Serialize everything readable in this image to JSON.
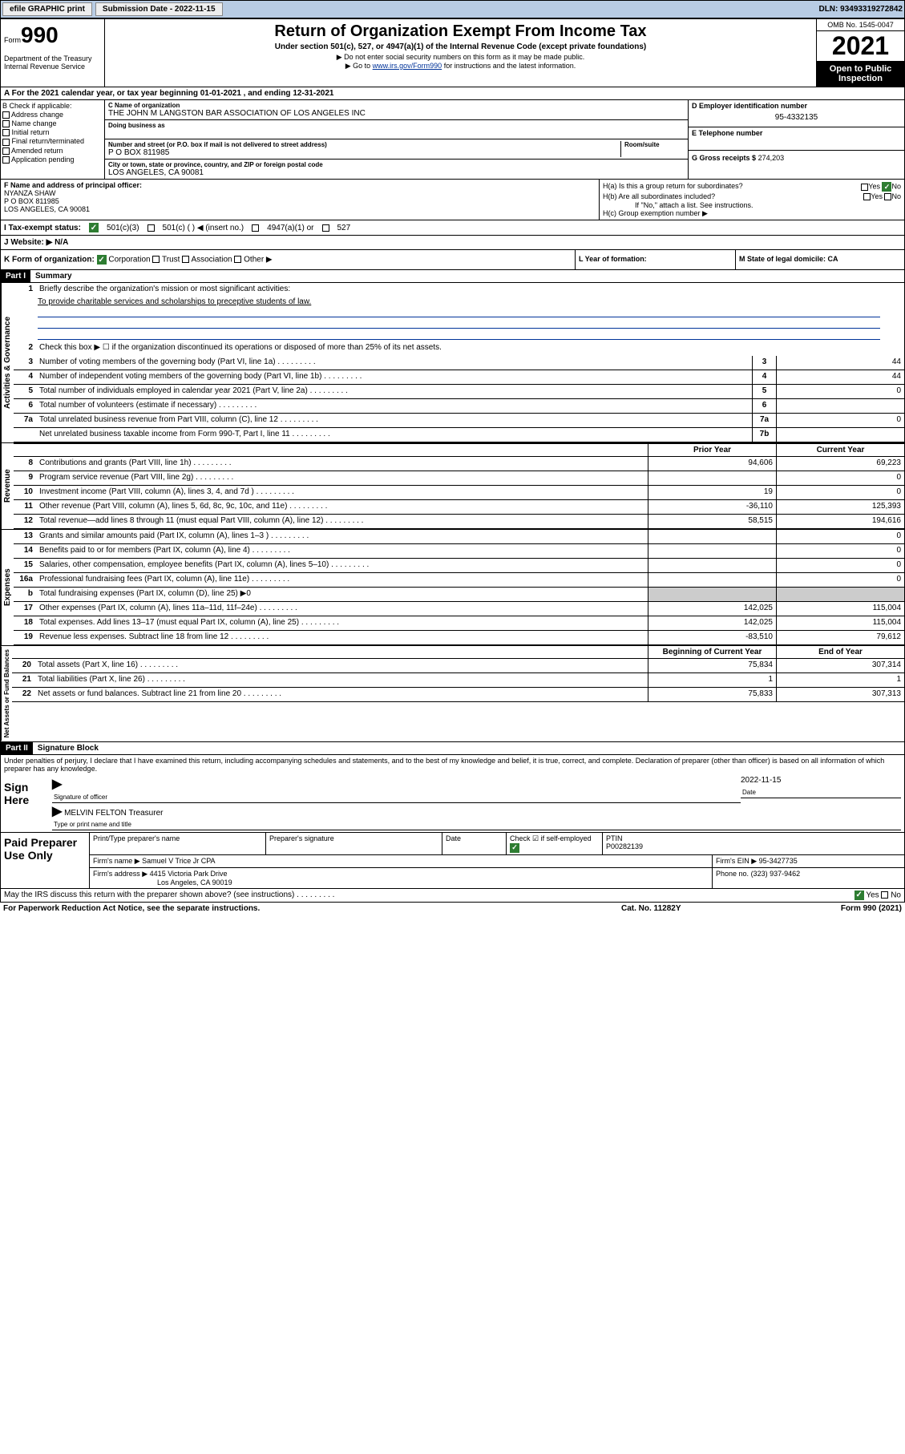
{
  "topbar": {
    "efile": "efile GRAPHIC print",
    "sub_label": "Submission Date - 2022-11-15",
    "dln": "DLN: 93493319272842"
  },
  "header": {
    "form_label": "Form",
    "form_num": "990",
    "dept": "Department of the Treasury\nInternal Revenue Service",
    "title": "Return of Organization Exempt From Income Tax",
    "subtitle": "Under section 501(c), 527, or 4947(a)(1) of the Internal Revenue Code (except private foundations)",
    "instr1": "▶ Do not enter social security numbers on this form as it may be made public.",
    "instr2_pre": "▶ Go to ",
    "instr2_link": "www.irs.gov/Form990",
    "instr2_post": " for instructions and the latest information.",
    "omb": "OMB No. 1545-0047",
    "year": "2021",
    "open": "Open to Public Inspection"
  },
  "row_a": "A For the 2021 calendar year, or tax year beginning 01-01-2021   , and ending 12-31-2021",
  "col_b": {
    "header": "B Check if applicable:",
    "items": [
      "Address change",
      "Name change",
      "Initial return",
      "Final return/terminated",
      "Amended return",
      "Application pending"
    ]
  },
  "col_c": {
    "name_label": "C Name of organization",
    "name": "THE JOHN M LANGSTON BAR ASSOCIATION OF LOS ANGELES INC",
    "dba_label": "Doing business as",
    "addr_label": "Number and street (or P.O. box if mail is not delivered to street address)",
    "room_label": "Room/suite",
    "addr": "P O BOX 811985",
    "city_label": "City or town, state or province, country, and ZIP or foreign postal code",
    "city": "LOS ANGELES, CA  90081"
  },
  "col_d": {
    "ein_label": "D Employer identification number",
    "ein": "95-4332135",
    "tel_label": "E Telephone number",
    "gross_label": "G Gross receipts $",
    "gross": "274,203"
  },
  "col_f": {
    "label": "F Name and address of principal officer:",
    "name": "NYANZA SHAW",
    "addr1": "P O BOX 811985",
    "addr2": "LOS ANGELES, CA  90081"
  },
  "col_h": {
    "ha": "H(a)  Is this a group return for subordinates?",
    "hb": "H(b)  Are all subordinates included?",
    "hb_note": "If \"No,\" attach a list. See instructions.",
    "hc": "H(c)  Group exemption number ▶",
    "yes": "Yes",
    "no": "No"
  },
  "row_i": {
    "label": "I   Tax-exempt status:",
    "opt1": "501(c)(3)",
    "opt2": "501(c) (   ) ◀ (insert no.)",
    "opt3": "4947(a)(1) or",
    "opt4": "527"
  },
  "row_j": "J   Website: ▶ N/A",
  "row_k": {
    "label": "K Form of organization:",
    "corp": "Corporation",
    "trust": "Trust",
    "assoc": "Association",
    "other": "Other ▶",
    "l": "L Year of formation:",
    "m": "M State of legal domicile: CA"
  },
  "part1": {
    "hdr": "Part I",
    "title": "Summary",
    "activities": "Activities & Governance",
    "revenue": "Revenue",
    "expenses": "Expenses",
    "netassets": "Net Assets or Fund Balances",
    "line1": "Briefly describe the organization's mission or most significant activities:",
    "mission": "To provide charitable services and scholarships to preceptive students of law.",
    "line2": "Check this box ▶ ☐  if the organization discontinued its operations or disposed of more than 25% of its net assets.",
    "rows_a": [
      {
        "n": "3",
        "t": "Number of voting members of the governing body (Part VI, line 1a)",
        "k": "3",
        "v": "44"
      },
      {
        "n": "4",
        "t": "Number of independent voting members of the governing body (Part VI, line 1b)",
        "k": "4",
        "v": "44"
      },
      {
        "n": "5",
        "t": "Total number of individuals employed in calendar year 2021 (Part V, line 2a)",
        "k": "5",
        "v": "0"
      },
      {
        "n": "6",
        "t": "Total number of volunteers (estimate if necessary)",
        "k": "6",
        "v": ""
      },
      {
        "n": "7a",
        "t": "Total unrelated business revenue from Part VIII, column (C), line 12",
        "k": "7a",
        "v": "0"
      },
      {
        "n": "",
        "t": "Net unrelated business taxable income from Form 990-T, Part I, line 11",
        "k": "7b",
        "v": ""
      }
    ],
    "hdr_prior": "Prior Year",
    "hdr_current": "Current Year",
    "rows_rev": [
      {
        "n": "8",
        "t": "Contributions and grants (Part VIII, line 1h)",
        "p": "94,606",
        "c": "69,223"
      },
      {
        "n": "9",
        "t": "Program service revenue (Part VIII, line 2g)",
        "p": "",
        "c": "0"
      },
      {
        "n": "10",
        "t": "Investment income (Part VIII, column (A), lines 3, 4, and 7d )",
        "p": "19",
        "c": "0"
      },
      {
        "n": "11",
        "t": "Other revenue (Part VIII, column (A), lines 5, 6d, 8c, 9c, 10c, and 11e)",
        "p": "-36,110",
        "c": "125,393"
      },
      {
        "n": "12",
        "t": "Total revenue—add lines 8 through 11 (must equal Part VIII, column (A), line 12)",
        "p": "58,515",
        "c": "194,616"
      }
    ],
    "rows_exp": [
      {
        "n": "13",
        "t": "Grants and similar amounts paid (Part IX, column (A), lines 1–3 )",
        "p": "",
        "c": "0"
      },
      {
        "n": "14",
        "t": "Benefits paid to or for members (Part IX, column (A), line 4)",
        "p": "",
        "c": "0"
      },
      {
        "n": "15",
        "t": "Salaries, other compensation, employee benefits (Part IX, column (A), lines 5–10)",
        "p": "",
        "c": "0"
      },
      {
        "n": "16a",
        "t": "Professional fundraising fees (Part IX, column (A), line 11e)",
        "p": "",
        "c": "0"
      }
    ],
    "line16b": "Total fundraising expenses (Part IX, column (D), line 25) ▶0",
    "rows_exp2": [
      {
        "n": "17",
        "t": "Other expenses (Part IX, column (A), lines 11a–11d, 11f–24e)",
        "p": "142,025",
        "c": "115,004"
      },
      {
        "n": "18",
        "t": "Total expenses. Add lines 13–17 (must equal Part IX, column (A), line 25)",
        "p": "142,025",
        "c": "115,004"
      },
      {
        "n": "19",
        "t": "Revenue less expenses. Subtract line 18 from line 12",
        "p": "-83,510",
        "c": "79,612"
      }
    ],
    "hdr_begin": "Beginning of Current Year",
    "hdr_end": "End of Year",
    "rows_net": [
      {
        "n": "20",
        "t": "Total assets (Part X, line 16)",
        "p": "75,834",
        "c": "307,314"
      },
      {
        "n": "21",
        "t": "Total liabilities (Part X, line 26)",
        "p": "1",
        "c": "1"
      },
      {
        "n": "22",
        "t": "Net assets or fund balances. Subtract line 21 from line 20",
        "p": "75,833",
        "c": "307,313"
      }
    ]
  },
  "part2": {
    "hdr": "Part II",
    "title": "Signature Block",
    "intro": "Under penalties of perjury, I declare that I have examined this return, including accompanying schedules and statements, and to the best of my knowledge and belief, it is true, correct, and complete. Declaration of preparer (other than officer) is based on all information of which preparer has any knowledge.",
    "sign_here": "Sign Here",
    "sig_officer": "Signature of officer",
    "sig_date": "2022-11-15",
    "date_label": "Date",
    "officer_name": "MELVIN FELTON Treasurer",
    "name_label": "Type or print name and title",
    "paid": "Paid Preparer Use Only",
    "prep_hdrs": [
      "Print/Type preparer's name",
      "Preparer's signature",
      "Date"
    ],
    "check_if": "Check ☑ if self-employed",
    "ptin_label": "PTIN",
    "ptin": "P00282139",
    "firm_name_label": "Firm's name    ▶",
    "firm_name": "Samuel V Trice Jr CPA",
    "firm_ein_label": "Firm's EIN ▶",
    "firm_ein": "95-3427735",
    "firm_addr_label": "Firm's address ▶",
    "firm_addr1": "4415 Victoria Park Drive",
    "firm_addr2": "Los Angeles, CA  90019",
    "phone_label": "Phone no.",
    "phone": "(323) 937-9462"
  },
  "footer": {
    "may_irs": "May the IRS discuss this return with the preparer shown above? (see instructions)",
    "yes": "Yes",
    "no": "No",
    "paperwork": "For Paperwork Reduction Act Notice, see the separate instructions.",
    "cat": "Cat. No. 11282Y",
    "form": "Form 990 (2021)"
  }
}
